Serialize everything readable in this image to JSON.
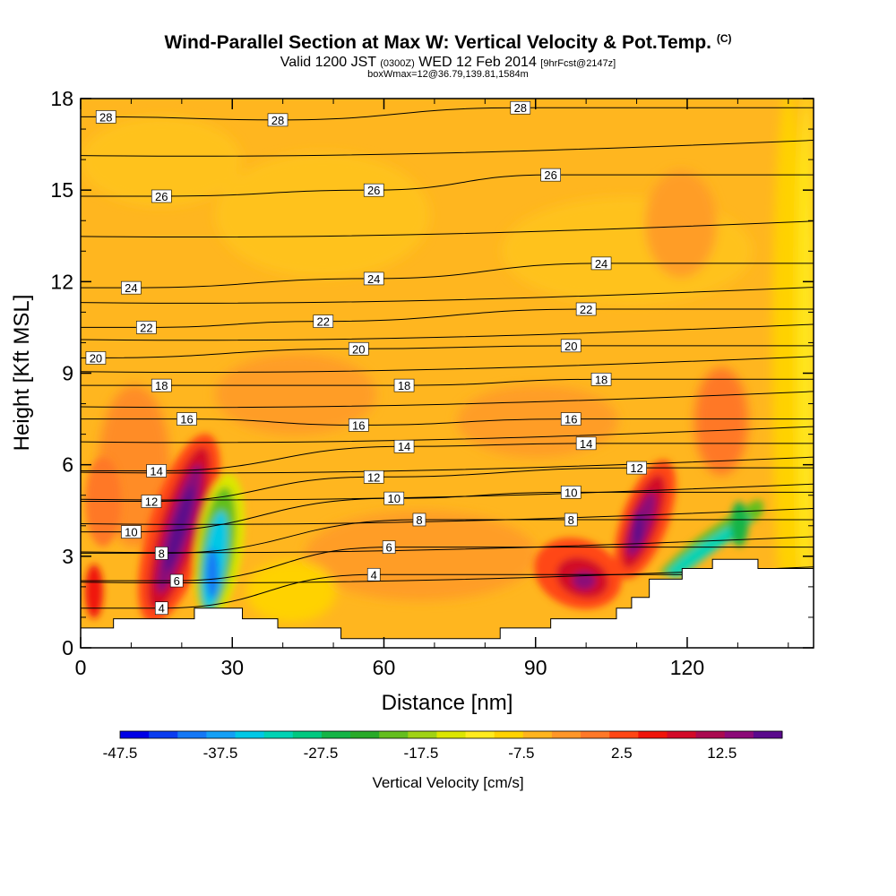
{
  "header": {
    "title": "Wind-Parallel Section at Max W: Vertical Velocity & Pot.Temp.",
    "copyright": "(C)",
    "valid_main": "Valid 1200 JST",
    "valid_utc": "(0300Z)",
    "valid_date": "WED 12 Feb 2014",
    "valid_fcst": "[9hrFcst@2147z]",
    "box_info": "boxWmax=12@36.79,139.81,1584m"
  },
  "chart_data": {
    "type": "heatmap",
    "xlabel": "Distance [nm]",
    "ylabel": "Height [Kft MSL]",
    "xlim": [
      0,
      145
    ],
    "ylim": [
      0,
      18
    ],
    "x_ticks": [
      0,
      30,
      60,
      90,
      120
    ],
    "y_ticks": [
      0,
      3,
      6,
      9,
      12,
      15,
      18
    ],
    "colorbar_label": "Vertical Velocity [cm/s]",
    "colorbar_ticks": [
      "-47.5",
      "-37.5",
      "-27.5",
      "-17.5",
      "-7.5",
      "2.5",
      "12.5"
    ],
    "colorbar_colors": [
      "#0000e6",
      "#0a3cf0",
      "#1478f5",
      "#14a0f5",
      "#00c8e6",
      "#00d2b4",
      "#00c880",
      "#14b446",
      "#28aa28",
      "#64be1e",
      "#a0d214",
      "#dce600",
      "#ffeb1e",
      "#ffd200",
      "#ffb41e",
      "#ff9628",
      "#ff7828",
      "#ff4614",
      "#f0140a",
      "#d20a28",
      "#aa0a50",
      "#8c0a78",
      "#5a0a8c"
    ],
    "background_color": "#ffb61f",
    "theta_contours": [
      {
        "value": 28,
        "labels": [
          [
            5,
            17.4
          ],
          [
            39,
            17.3
          ],
          [
            87,
            17.7
          ]
        ]
      },
      {
        "value": 26,
        "labels": [
          [
            16,
            14.8
          ],
          [
            58,
            15.0
          ],
          [
            93,
            15.5
          ]
        ]
      },
      {
        "value": 24,
        "labels": [
          [
            10,
            11.8
          ],
          [
            58,
            12.1
          ],
          [
            103,
            12.6
          ]
        ]
      },
      {
        "value": 22,
        "labels": [
          [
            13,
            10.5
          ],
          [
            48,
            10.7
          ],
          [
            100,
            11.1
          ]
        ]
      },
      {
        "value": 20,
        "labels": [
          [
            3,
            9.5
          ],
          [
            55,
            9.8
          ],
          [
            97,
            9.9
          ]
        ]
      },
      {
        "value": 18,
        "labels": [
          [
            16,
            8.6
          ],
          [
            64,
            8.6
          ],
          [
            103,
            8.8
          ]
        ]
      },
      {
        "value": 16,
        "labels": [
          [
            21,
            7.5
          ],
          [
            55,
            7.3
          ],
          [
            97,
            7.5
          ]
        ]
      },
      {
        "value": 14,
        "labels": [
          [
            15,
            5.8
          ],
          [
            64,
            6.6
          ],
          [
            100,
            6.7
          ]
        ]
      },
      {
        "value": 12,
        "labels": [
          [
            14,
            4.8
          ],
          [
            58,
            5.6
          ],
          [
            110,
            5.9
          ]
        ]
      },
      {
        "value": 10,
        "labels": [
          [
            10,
            3.8
          ],
          [
            62,
            4.9
          ],
          [
            97,
            5.1
          ]
        ]
      },
      {
        "value": 8,
        "labels": [
          [
            16,
            3.1
          ],
          [
            67,
            4.2
          ],
          [
            97,
            4.2
          ]
        ]
      },
      {
        "value": 6,
        "labels": [
          [
            19,
            2.2
          ],
          [
            61,
            3.3
          ]
        ]
      },
      {
        "value": 4,
        "labels": [
          [
            16,
            1.3
          ],
          [
            58,
            2.4
          ]
        ]
      }
    ],
    "terrain": [
      [
        0,
        0.65
      ],
      [
        6.5,
        0.65
      ],
      [
        6.5,
        0.95
      ],
      [
        22.5,
        0.95
      ],
      [
        22.5,
        1.3
      ],
      [
        32,
        1.3
      ],
      [
        32,
        0.95
      ],
      [
        39,
        0.95
      ],
      [
        39,
        0.65
      ],
      [
        51.5,
        0.65
      ],
      [
        51.5,
        0.3
      ],
      [
        83,
        0.3
      ],
      [
        83,
        0.65
      ],
      [
        93,
        0.65
      ],
      [
        93,
        0.95
      ],
      [
        106,
        0.95
      ],
      [
        106,
        1.3
      ],
      [
        109,
        1.3
      ],
      [
        109,
        1.65
      ],
      [
        112.5,
        1.65
      ],
      [
        112.5,
        2.25
      ],
      [
        119,
        2.25
      ],
      [
        119,
        2.6
      ],
      [
        125,
        2.6
      ],
      [
        125,
        2.9
      ],
      [
        134,
        2.9
      ],
      [
        134,
        2.6
      ],
      [
        145,
        2.6
      ]
    ]
  }
}
